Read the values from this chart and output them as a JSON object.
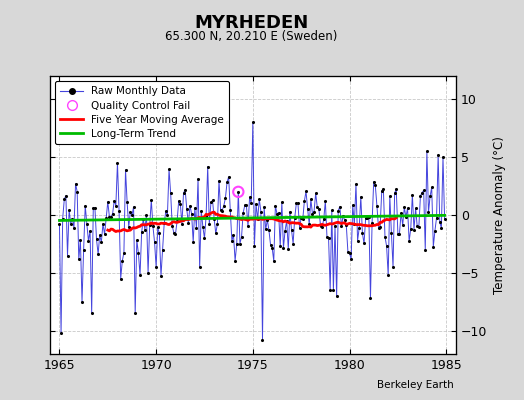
{
  "title": "MYRHEDEN",
  "subtitle": "65.300 N, 20.210 E (Sweden)",
  "ylabel": "Temperature Anomaly (°C)",
  "watermark": "Berkeley Earth",
  "xlim": [
    1964.5,
    1985.5
  ],
  "ylim": [
    -12,
    12
  ],
  "yticks": [
    -10,
    -5,
    0,
    5,
    10
  ],
  "xticks": [
    1965,
    1970,
    1975,
    1980,
    1985
  ],
  "background_color": "#d8d8d8",
  "plot_bg_color": "#ffffff",
  "raw_line_color": "#4444dd",
  "raw_marker_color": "#000000",
  "moving_avg_color": "#ff0000",
  "trend_color": "#00bb00",
  "qc_fail_color": "#ff44ff",
  "grid_color": "#bbbbbb",
  "trend_slope": 0.022,
  "trend_intercept": -0.25,
  "seed": 17
}
